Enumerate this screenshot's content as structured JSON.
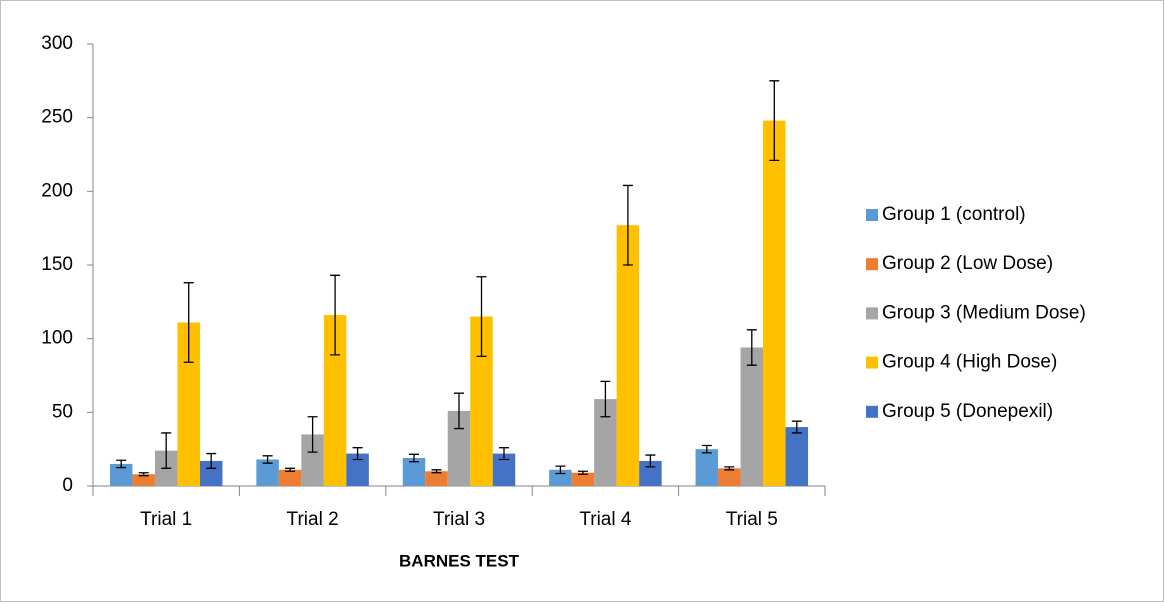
{
  "chart_data": {
    "type": "bar",
    "x_label": "BARNES TEST",
    "categories": [
      "Trial 1",
      "Trial 2",
      "Trial 3",
      "Trial 4",
      "Trial 5"
    ],
    "series": [
      {
        "name": "Group 1 (control)",
        "color": "#5b9bd5",
        "values": [
          15,
          18,
          19,
          11,
          25
        ],
        "errors": [
          2.5,
          2.5,
          2.5,
          2.5,
          2.5
        ]
      },
      {
        "name": "Group 2 (Low Dose)",
        "color": "#ed7d31",
        "values": [
          8,
          11,
          10,
          9,
          12
        ],
        "errors": [
          1,
          1,
          1,
          1,
          1
        ]
      },
      {
        "name": "Group 3 (Medium Dose)",
        "color": "#a5a5a5",
        "values": [
          24,
          35,
          51,
          59,
          94
        ],
        "errors": [
          12,
          12,
          12,
          12,
          12
        ]
      },
      {
        "name": "Group 4 (High Dose)",
        "color": "#ffc000",
        "values": [
          111,
          116,
          115,
          177,
          248
        ],
        "errors": [
          27,
          27,
          27,
          27,
          27
        ]
      },
      {
        "name": "Group 5 (Donepexil)",
        "color": "#4472c4",
        "values": [
          17,
          22,
          22,
          17,
          40
        ],
        "errors": [
          5,
          4,
          4,
          4,
          4
        ]
      }
    ],
    "ylim": [
      0,
      300
    ],
    "yticks": [
      0,
      50,
      100,
      150,
      200,
      250,
      300
    ],
    "legend": "right"
  }
}
